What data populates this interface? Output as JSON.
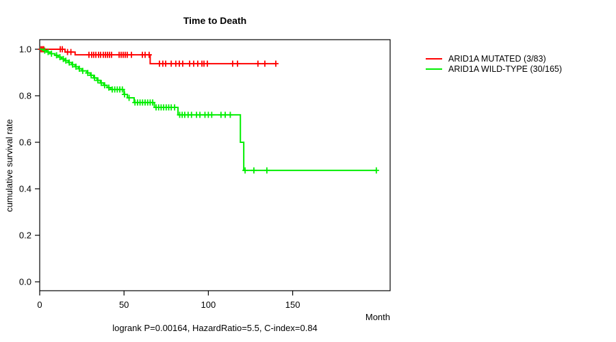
{
  "chart_data": {
    "type": "line",
    "subtype": "kaplan-meier-step",
    "title": "Time to Death",
    "xlabel": "Month",
    "ylabel": "cumulative survival rate",
    "annotation": "logrank P=0.00164, HazardRatio=5.5, C-index=0.84",
    "x_ticks": [
      0,
      50,
      100,
      150
    ],
    "y_ticks": [
      0.0,
      0.2,
      0.4,
      0.6,
      0.8,
      1.0
    ],
    "xlim": [
      0,
      207
    ],
    "ylim": [
      0,
      1
    ],
    "grid": false,
    "legend_position": "right-outside",
    "axis_color": "#000000",
    "series": [
      {
        "name": "ARID1A MUTATED (3/83)",
        "color": "#ff0000",
        "steps": [
          [
            0,
            1.0
          ],
          [
            15,
            0.988
          ],
          [
            21,
            0.976
          ],
          [
            65.5,
            0.938
          ]
        ],
        "end": 140,
        "censor_times": [
          0.8,
          1.6,
          2.4,
          12.2,
          13.4,
          16.5,
          18.5,
          29.2,
          30.8,
          32,
          33.3,
          34.9,
          36.1,
          37.7,
          39,
          40.2,
          41.4,
          42.6,
          47.1,
          48.3,
          49.5,
          50.7,
          51.9,
          54.4,
          60.9,
          62.5,
          64.9,
          71,
          73,
          74.7,
          78,
          80.7,
          82.8,
          84.8,
          88.9,
          91.3,
          93.7,
          96.2,
          97.4,
          99.4,
          114.4,
          117.3,
          129.4,
          133.5,
          140
        ]
      },
      {
        "name": "ARID1A WILD-TYPE (30/165)",
        "color": "#00ee00",
        "steps": [
          [
            0,
            1.0
          ],
          [
            2,
            0.994
          ],
          [
            4,
            0.988
          ],
          [
            6,
            0.981
          ],
          [
            9,
            0.974
          ],
          [
            11,
            0.966
          ],
          [
            13,
            0.958
          ],
          [
            15,
            0.951
          ],
          [
            17,
            0.943
          ],
          [
            19,
            0.934
          ],
          [
            21,
            0.925
          ],
          [
            23,
            0.916
          ],
          [
            25,
            0.907
          ],
          [
            28,
            0.898
          ],
          [
            30,
            0.888
          ],
          [
            32,
            0.877
          ],
          [
            34,
            0.866
          ],
          [
            36,
            0.855
          ],
          [
            38,
            0.845
          ],
          [
            40,
            0.835
          ],
          [
            42,
            0.827
          ],
          [
            50,
            0.806
          ],
          [
            52,
            0.791
          ],
          [
            56,
            0.771
          ],
          [
            68,
            0.75
          ],
          [
            82,
            0.718
          ],
          [
            119,
            0.6
          ],
          [
            121,
            0.479
          ]
        ],
        "end": 199.6,
        "censor_times": [
          3,
          5,
          7,
          10,
          12,
          14,
          15.5,
          17.5,
          19.5,
          21.5,
          23.5,
          25.5,
          28.5,
          30.5,
          32.5,
          34.5,
          36.5,
          38.5,
          41,
          43,
          44.5,
          46,
          47.5,
          49,
          50.3,
          53,
          56.5,
          58,
          59.5,
          61,
          62.5,
          64,
          65.5,
          67,
          69,
          70.5,
          72,
          73.5,
          75,
          76.5,
          78,
          80,
          83,
          84.5,
          86,
          88,
          90,
          93,
          95,
          98,
          100,
          102,
          107.5,
          110,
          113,
          121.8,
          127,
          134.7,
          199.6
        ]
      }
    ]
  }
}
